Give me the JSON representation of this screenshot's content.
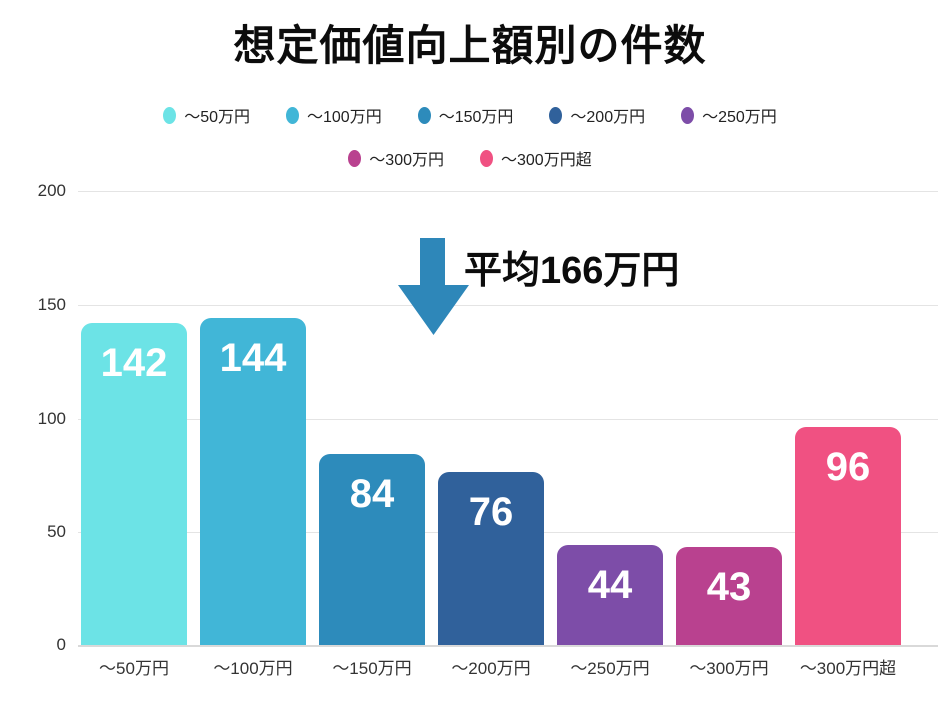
{
  "chart_data": {
    "type": "bar",
    "title": "想定価値向上額別の件数",
    "categories": [
      "～50万円",
      "～100万円",
      "～150万円",
      "～200万円",
      "～250万円",
      "～300万円",
      "～300万円超"
    ],
    "values": [
      142,
      144,
      84,
      76,
      44,
      43,
      96
    ],
    "colors": [
      "#6ce3e6",
      "#41b6d7",
      "#2d8bbb",
      "#30619b",
      "#7d4da8",
      "#b9418f",
      "#f05182"
    ],
    "ylim": [
      0,
      200
    ],
    "ytick_labels": [
      "0",
      "50",
      "100",
      "150",
      "200"
    ],
    "grid": true,
    "legend_position": "top-center-two-rows",
    "value_label_color": "#ffffff",
    "annotation": {
      "text": "平均166万円",
      "arrow": "down-arrow",
      "arrow_color": "#2e87b9"
    }
  }
}
